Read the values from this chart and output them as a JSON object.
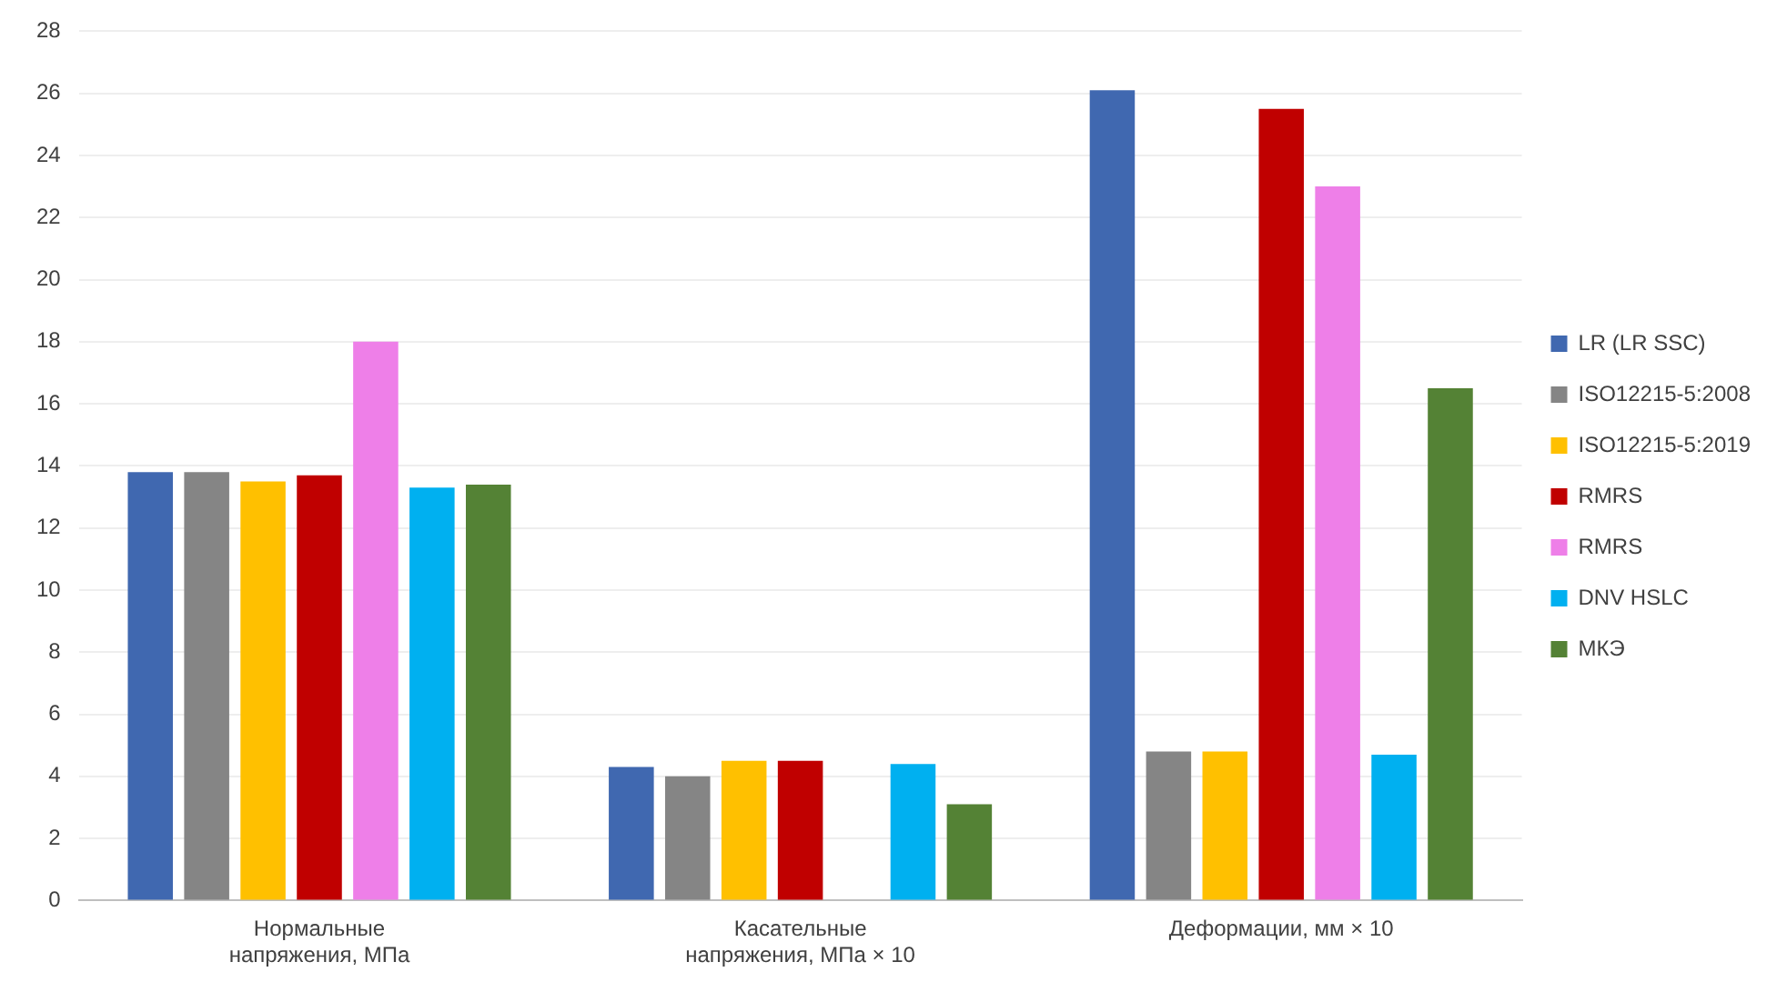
{
  "chart_data": {
    "type": "bar",
    "categories": [
      "Нормальные напряжения, МПа",
      "Касательные напряжения, МПа × 10",
      "Деформации, мм × 10"
    ],
    "series": [
      {
        "name": "LR (LR SSC)",
        "color": "#4068b0",
        "values": [
          13.8,
          4.3,
          26.1
        ]
      },
      {
        "name": "ISO12215-5:2008",
        "color": "#858585",
        "values": [
          13.8,
          4.0,
          4.8
        ]
      },
      {
        "name": "ISO12215-5:2019",
        "color": "#ffc000",
        "values": [
          13.5,
          4.5,
          4.8
        ]
      },
      {
        "name": "RMRS",
        "color": "#c00000",
        "values": [
          13.7,
          4.5,
          25.5
        ]
      },
      {
        "name": "RMRS",
        "color": "#ee7fe8",
        "values": [
          18.0,
          null,
          23.0
        ]
      },
      {
        "name": "DNV HSLC",
        "color": "#00b0f0",
        "values": [
          13.3,
          4.4,
          4.7
        ]
      },
      {
        "name": "МКЭ",
        "color": "#548235",
        "values": [
          13.4,
          3.1,
          16.5
        ]
      }
    ],
    "ylim": [
      0,
      28
    ],
    "yticks": [
      0,
      2,
      4,
      6,
      8,
      10,
      12,
      14,
      16,
      18,
      20,
      22,
      24,
      26,
      28
    ],
    "grid": "y",
    "legend": "right"
  }
}
